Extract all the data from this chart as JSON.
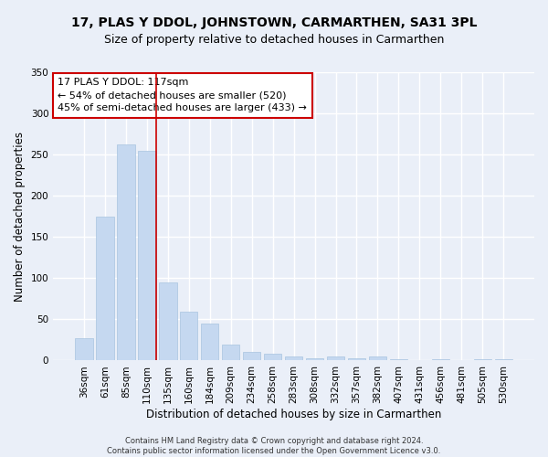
{
  "title": "17, PLAS Y DDOL, JOHNSTOWN, CARMARTHEN, SA31 3PL",
  "subtitle": "Size of property relative to detached houses in Carmarthen",
  "xlabel": "Distribution of detached houses by size in Carmarthen",
  "ylabel": "Number of detached properties",
  "categories": [
    "36sqm",
    "61sqm",
    "85sqm",
    "110sqm",
    "135sqm",
    "160sqm",
    "184sqm",
    "209sqm",
    "234sqm",
    "258sqm",
    "283sqm",
    "308sqm",
    "332sqm",
    "357sqm",
    "382sqm",
    "407sqm",
    "431sqm",
    "456sqm",
    "481sqm",
    "505sqm",
    "530sqm"
  ],
  "values": [
    27,
    175,
    262,
    255,
    95,
    59,
    45,
    19,
    10,
    8,
    5,
    3,
    5,
    3,
    5,
    2,
    0,
    2,
    0,
    2,
    2
  ],
  "bar_color": "#c5d8f0",
  "bar_edge_color": "#a8c4e0",
  "property_line_x": 3.0,
  "property_line_color": "#cc0000",
  "annotation_text": "17 PLAS Y DDOL: 117sqm\n← 54% of detached houses are smaller (520)\n45% of semi-detached houses are larger (433) →",
  "annotation_box_color": "#ffffff",
  "annotation_box_edge": "#cc0000",
  "ylim": [
    0,
    350
  ],
  "yticks": [
    0,
    50,
    100,
    150,
    200,
    250,
    300,
    350
  ],
  "footer": "Contains HM Land Registry data © Crown copyright and database right 2024.\nContains public sector information licensed under the Open Government Licence v3.0.",
  "background_color": "#eaeff8",
  "plot_background": "#eaeff8",
  "grid_color": "#ffffff",
  "title_fontsize": 10,
  "subtitle_fontsize": 9,
  "tick_fontsize": 7.5,
  "ylabel_fontsize": 8.5,
  "xlabel_fontsize": 8.5,
  "annotation_fontsize": 8,
  "footer_fontsize": 6
}
